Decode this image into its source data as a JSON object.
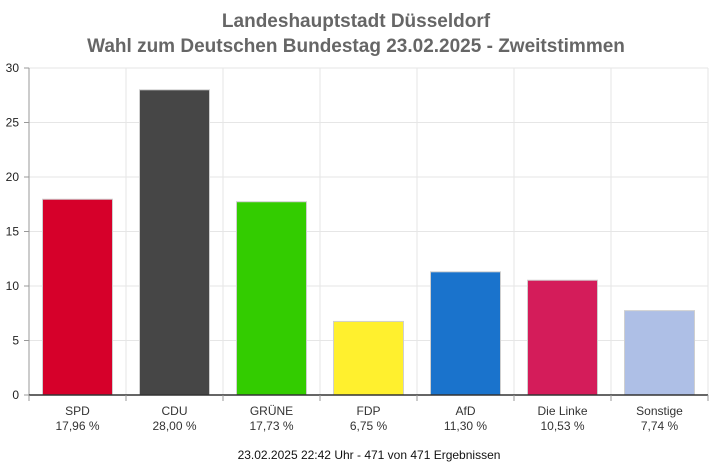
{
  "chart_data": {
    "type": "bar",
    "title": "Landeshauptstadt Düsseldorf",
    "subtitle": "Wahl zum Deutschen Bundestag 23.02.2025  - Zweitstimmen",
    "categories": [
      "SPD",
      "CDU",
      "GRÜNE",
      "FDP",
      "AfD",
      "Die Linke",
      "Sonstige"
    ],
    "values": [
      17.96,
      28.0,
      17.73,
      6.75,
      11.3,
      10.53,
      7.74
    ],
    "value_labels": [
      "17,96 %",
      "28,00 %",
      "17,73 %",
      "6,75 %",
      "11,30 %",
      "10,53 %",
      "7,74 %"
    ],
    "colors": [
      "#d6002a",
      "#464646",
      "#33cc00",
      "#fff02e",
      "#1a73cc",
      "#d41c5a",
      "#aebfe6"
    ],
    "ylim": [
      0,
      30
    ],
    "yticks": [
      0,
      5,
      10,
      15,
      20,
      25,
      30
    ],
    "ytick_labels": [
      "0",
      "5",
      "10",
      "15",
      "20",
      "25",
      "30"
    ],
    "grid": true,
    "footer": "23.02.2025 22:42 Uhr - 471 von 471 Ergebnissen"
  }
}
